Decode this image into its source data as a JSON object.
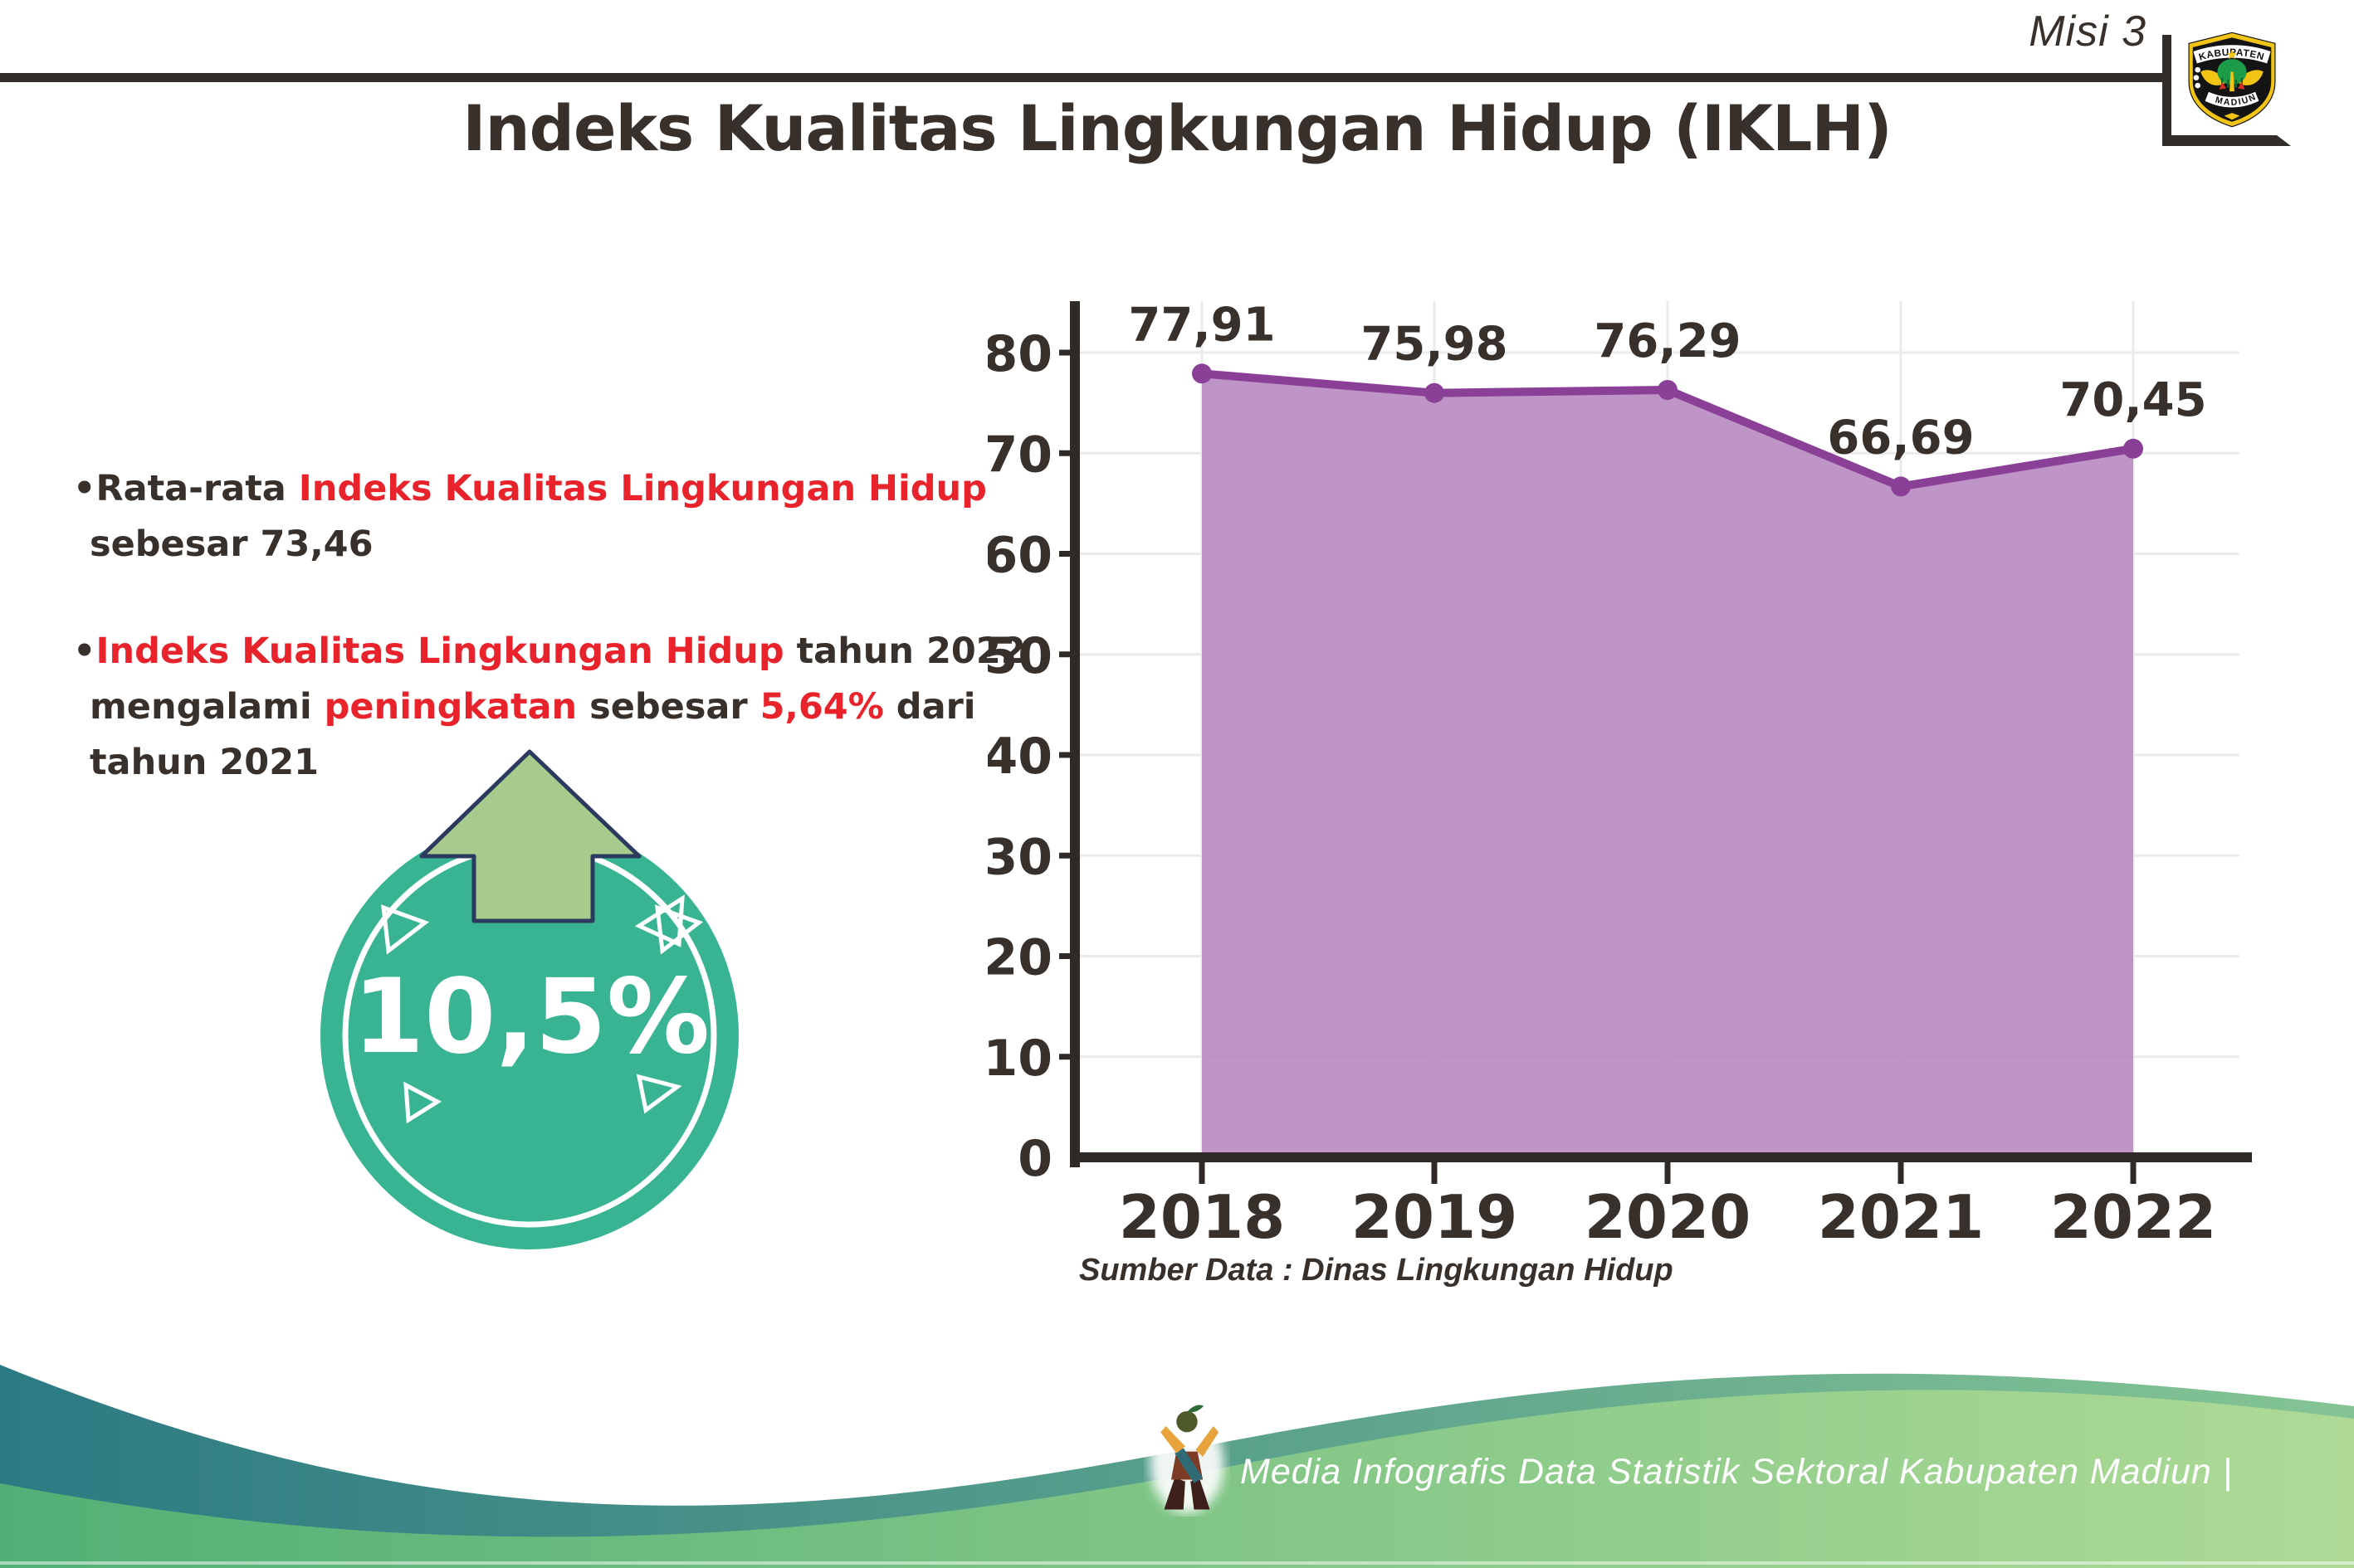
{
  "header": {
    "misi_label": "Misi 3",
    "logo": {
      "top_text": "KABUPATEN",
      "bottom_text": "MADIUN"
    }
  },
  "title": "Indeks Kualitas Lingkungan Hidup (IKLH)",
  "bullets": [
    {
      "lines": [
        [
          {
            "text": "•",
            "color": "dark"
          },
          {
            "text": "Rata-rata ",
            "color": "dark"
          },
          {
            "text": "Indeks Kualitas Lingkungan Hidup",
            "color": "red"
          }
        ],
        [
          {
            "text": "sebesar 73,46",
            "color": "dark"
          }
        ]
      ]
    },
    {
      "lines": [
        [
          {
            "text": "•",
            "color": "dark"
          },
          {
            "text": "Indeks Kualitas Lingkungan Hidup",
            "color": "red"
          },
          {
            "text": " tahun 2022",
            "color": "dark"
          }
        ],
        [
          {
            "text": "mengalami ",
            "color": "dark"
          },
          {
            "text": "peningkatan",
            "color": "red"
          },
          {
            "text": " sebesar ",
            "color": "dark"
          },
          {
            "text": "5,64%",
            "color": "red"
          },
          {
            "text": " dari",
            "color": "dark"
          }
        ],
        [
          {
            "text": "tahun 2021",
            "color": "dark"
          }
        ]
      ]
    }
  ],
  "badge": {
    "value": "10,5%",
    "arrow": "up"
  },
  "chart_data": {
    "type": "area",
    "categories": [
      "2018",
      "2019",
      "2020",
      "2021",
      "2022"
    ],
    "values": [
      77.91,
      75.98,
      76.29,
      66.69,
      70.45
    ],
    "labels": [
      "77,91",
      "75,98",
      "76,29",
      "66,69",
      "70,45"
    ],
    "title": "Indeks Kualitas Lingkungan Hidup (IKLH)",
    "xlabel": "",
    "ylabel": "",
    "ylim": [
      0,
      80
    ],
    "yticks": [
      0,
      10,
      20,
      30,
      40,
      50,
      60,
      70,
      80
    ],
    "grid": true,
    "legend": "none",
    "source": "Sumber Data : Dinas Lingkungan Hidup",
    "colors": {
      "area": "#b888c0",
      "line": "#8a4096",
      "marker": "#8a4096",
      "grid": "#ebebeb",
      "axis": "#2f2a26"
    }
  },
  "footer": {
    "text": "Media Infografis Data Statistik Sektoral Kabupaten Madiun |"
  },
  "colors": {
    "dark_text": "#38302b",
    "red_text": "#e8232b",
    "rule": "#332d2a",
    "badge_teal": "#38b492",
    "badge_arrow_green": "#a7cb8c",
    "badge_arrow_outline": "#2b3a5e",
    "footer_teal_start": "#2c7a83",
    "footer_teal_end": "#84c494",
    "footer_green_start": "#52b076",
    "footer_green_end": "#aeda96",
    "footer_text": "#ffffff",
    "logo_yellow": "#f2c413",
    "logo_green": "#1c9c49"
  }
}
